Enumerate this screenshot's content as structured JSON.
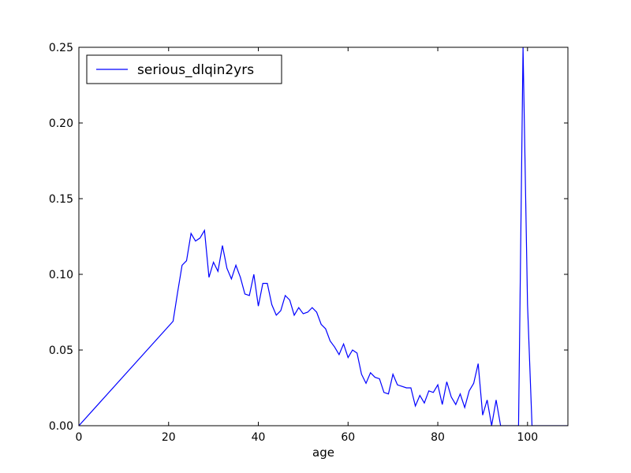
{
  "chart_data": {
    "type": "line",
    "title": "",
    "xlabel": "age",
    "ylabel": "",
    "xlim": [
      0,
      109
    ],
    "ylim": [
      0,
      0.25
    ],
    "x_ticks": [
      0,
      20,
      40,
      60,
      80,
      100
    ],
    "x_tick_labels": [
      "0",
      "20",
      "40",
      "60",
      "80",
      "100"
    ],
    "y_ticks": [
      0,
      0.05,
      0.1,
      0.15,
      0.2,
      0.25
    ],
    "y_tick_labels": [
      "0.00",
      "0.05",
      "0.10",
      "0.15",
      "0.20",
      "0.25"
    ],
    "grid": false,
    "legend_position": "upper-left",
    "series": [
      {
        "name": "serious_dlqin2yrs",
        "color": "#0000ff",
        "x": [
          0,
          21,
          22,
          23,
          24,
          25,
          26,
          27,
          28,
          29,
          30,
          31,
          32,
          33,
          34,
          35,
          36,
          37,
          38,
          39,
          40,
          41,
          42,
          43,
          44,
          45,
          46,
          47,
          48,
          49,
          50,
          51,
          52,
          53,
          54,
          55,
          56,
          57,
          58,
          59,
          60,
          61,
          62,
          63,
          64,
          65,
          66,
          67,
          68,
          69,
          70,
          71,
          72,
          73,
          74,
          75,
          76,
          77,
          78,
          79,
          80,
          81,
          82,
          83,
          84,
          85,
          86,
          87,
          88,
          89,
          90,
          91,
          92,
          93,
          94,
          95,
          96,
          97,
          98,
          99,
          100,
          101,
          102,
          103,
          105,
          107,
          109
        ],
        "y": [
          0,
          0.069,
          0.088,
          0.106,
          0.109,
          0.127,
          0.122,
          0.124,
          0.129,
          0.098,
          0.108,
          0.102,
          0.119,
          0.104,
          0.097,
          0.106,
          0.098,
          0.087,
          0.086,
          0.1,
          0.079,
          0.094,
          0.094,
          0.08,
          0.073,
          0.076,
          0.086,
          0.083,
          0.073,
          0.078,
          0.074,
          0.075,
          0.078,
          0.075,
          0.067,
          0.064,
          0.056,
          0.052,
          0.047,
          0.054,
          0.045,
          0.05,
          0.048,
          0.034,
          0.028,
          0.035,
          0.032,
          0.031,
          0.022,
          0.021,
          0.034,
          0.027,
          0.026,
          0.025,
          0.025,
          0.013,
          0.02,
          0.015,
          0.023,
          0.022,
          0.027,
          0.014,
          0.029,
          0.019,
          0.014,
          0.021,
          0.012,
          0.023,
          0.028,
          0.041,
          0.007,
          0.017,
          0.0,
          0.017,
          0.0,
          0.0,
          0.0,
          0.0,
          0.0,
          0.25,
          0.08,
          0.0,
          0.0,
          0.0,
          0.0,
          0.0,
          0.0
        ]
      }
    ]
  }
}
